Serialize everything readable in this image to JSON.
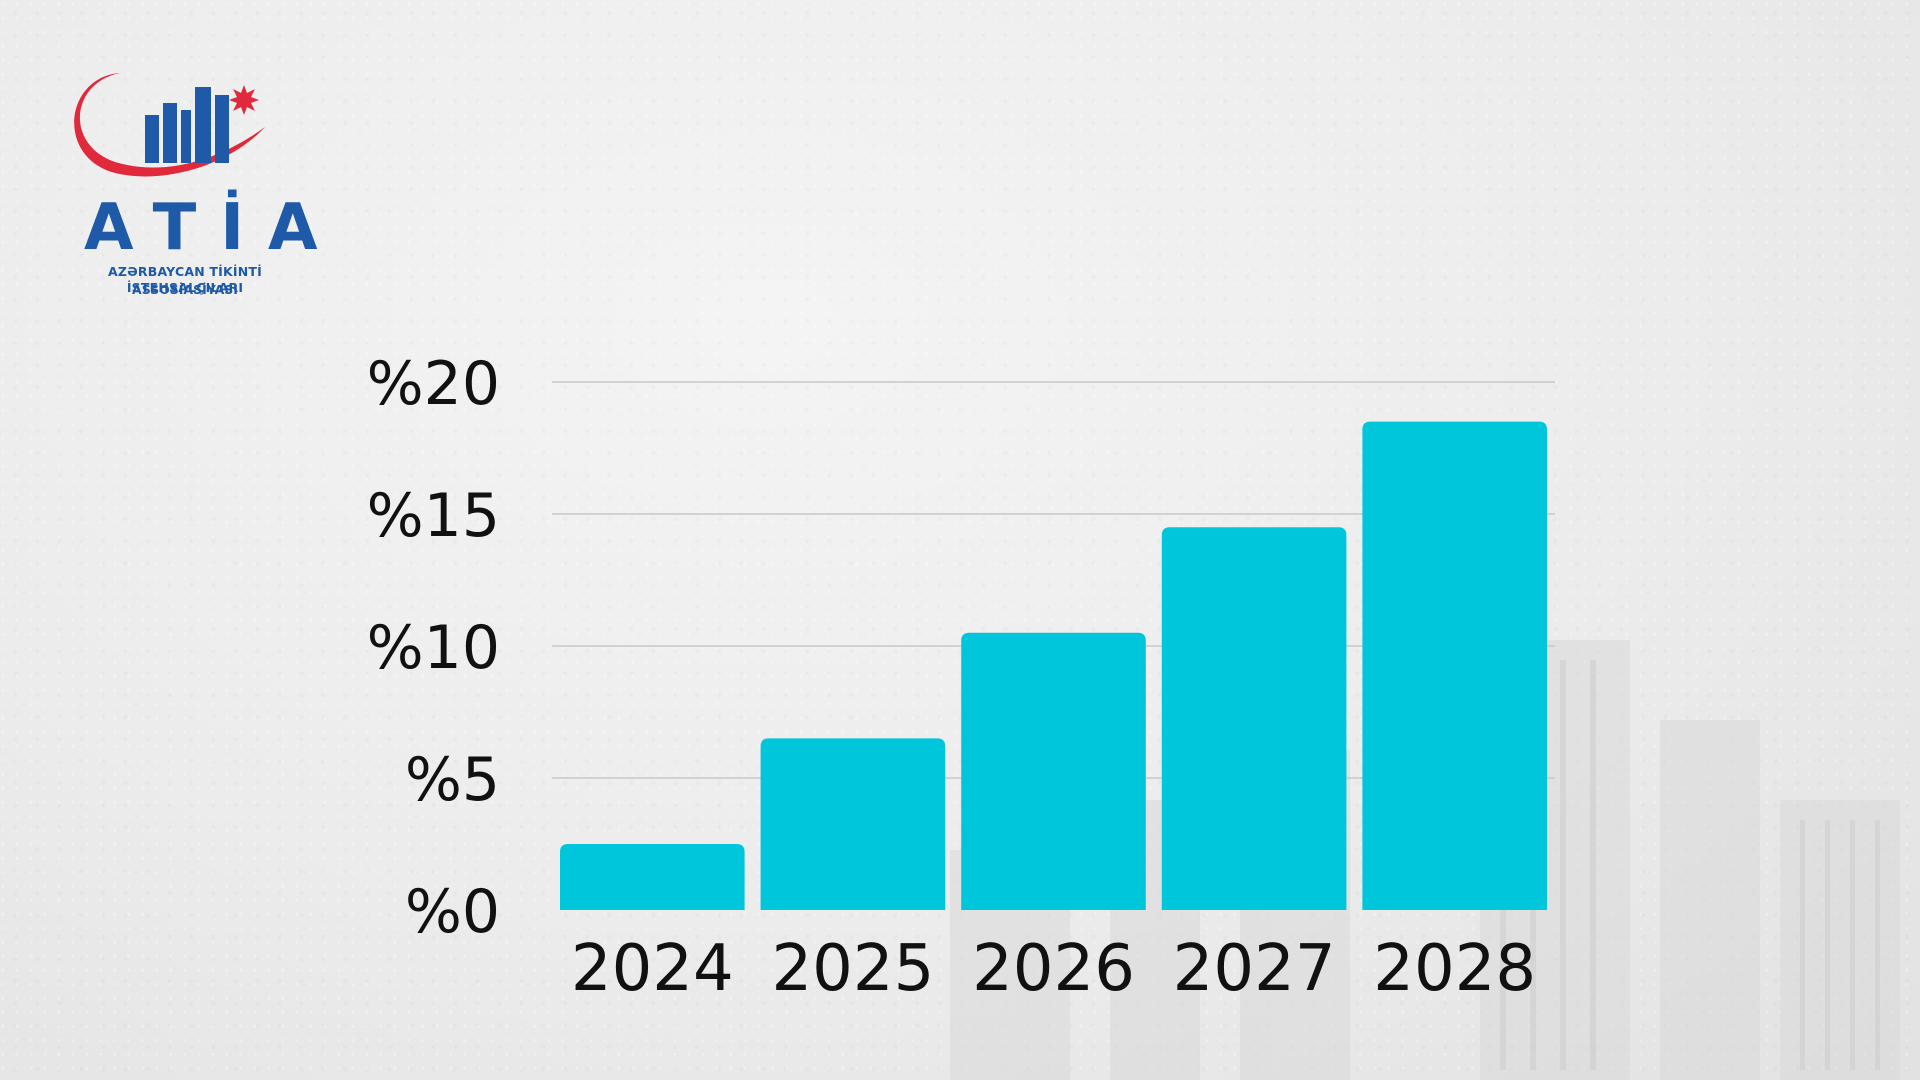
{
  "logo": {
    "name": "ATİA",
    "line1": "AZƏRBAYCAN TİKİNTİ İSTEHSALÇILARI",
    "line2": "ASSOSİASİYASI",
    "colors": {
      "crescent": "#e0293a",
      "buildings": "#1e5aa8",
      "star": "#e0293a"
    }
  },
  "chart_data": {
    "type": "bar",
    "categories": [
      "2024",
      "2025",
      "2026",
      "2027",
      "2028"
    ],
    "values": [
      2.5,
      6.5,
      10.5,
      14.5,
      18.5
    ],
    "y_ticks": [
      0,
      5,
      10,
      15,
      20
    ],
    "y_tick_labels": [
      "%0",
      "%5",
      "%10",
      "%15",
      "%20"
    ],
    "ylim": [
      0,
      20
    ],
    "grid": true,
    "bar_color": "#00c6dc",
    "title": "",
    "xlabel": "",
    "ylabel": ""
  }
}
